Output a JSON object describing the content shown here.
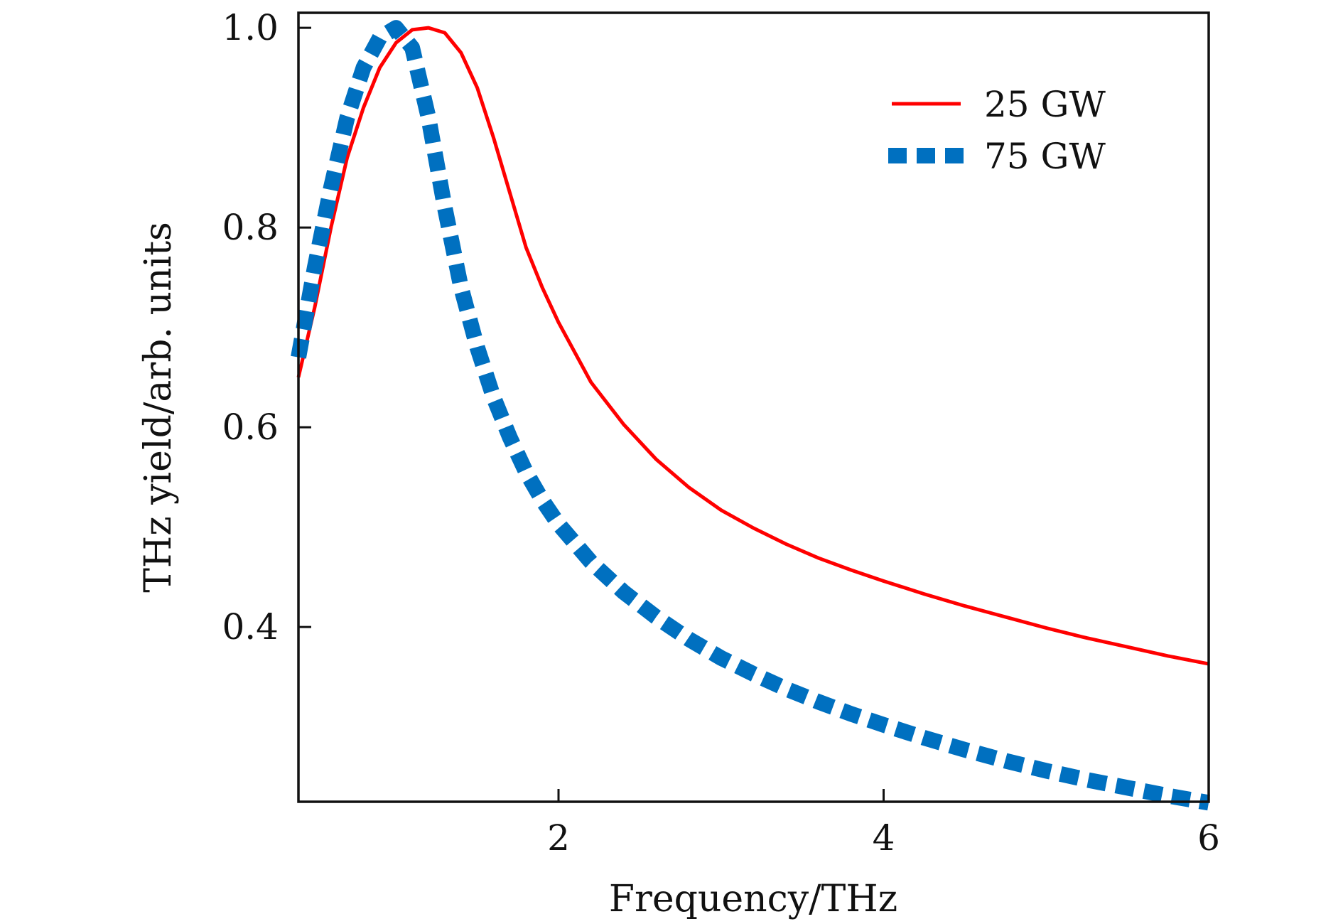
{
  "chart_data": {
    "type": "line",
    "title": "",
    "xlabel": "Frequency/THz",
    "ylabel": "THz yield/arb. units",
    "xlim": [
      0.4,
      6.0
    ],
    "ylim": [
      0.225,
      1.015
    ],
    "xticks": [
      2,
      4,
      6
    ],
    "yticks": [
      0.4,
      0.6,
      0.8,
      1.0
    ],
    "xtick_labels": [
      "2",
      "4",
      "6"
    ],
    "ytick_labels": [
      "0.4",
      "0.6",
      "0.8",
      "1.0"
    ],
    "grid": false,
    "legend_position": "top-right",
    "series": [
      {
        "name": "25 GW",
        "style": "solid",
        "color": "#ff0000",
        "x": [
          0.4,
          0.5,
          0.6,
          0.7,
          0.8,
          0.9,
          1.0,
          1.1,
          1.2,
          1.3,
          1.4,
          1.5,
          1.6,
          1.7,
          1.8,
          1.9,
          2.0,
          2.2,
          2.4,
          2.6,
          2.8,
          3.0,
          3.2,
          3.4,
          3.6,
          3.8,
          4.0,
          4.25,
          4.5,
          4.75,
          5.0,
          5.25,
          5.5,
          5.75,
          6.0
        ],
        "y": [
          0.65,
          0.72,
          0.8,
          0.87,
          0.92,
          0.96,
          0.985,
          0.998,
          1.0,
          0.995,
          0.975,
          0.94,
          0.89,
          0.835,
          0.78,
          0.74,
          0.705,
          0.645,
          0.603,
          0.568,
          0.54,
          0.517,
          0.499,
          0.483,
          0.469,
          0.457,
          0.446,
          0.433,
          0.421,
          0.41,
          0.399,
          0.389,
          0.38,
          0.371,
          0.363
        ]
      },
      {
        "name": "75 GW",
        "style": "dashed",
        "color": "#0070c0",
        "x": [
          0.4,
          0.5,
          0.6,
          0.7,
          0.8,
          0.9,
          1.0,
          1.1,
          1.2,
          1.3,
          1.4,
          1.5,
          1.6,
          1.7,
          1.8,
          1.9,
          2.0,
          2.2,
          2.4,
          2.6,
          2.8,
          3.0,
          3.2,
          3.4,
          3.6,
          3.8,
          4.0,
          4.25,
          4.5,
          4.75,
          5.0,
          5.25,
          5.5,
          5.75,
          6.0
        ],
        "y": [
          0.67,
          0.76,
          0.84,
          0.91,
          0.96,
          0.99,
          1.0,
          0.98,
          0.91,
          0.82,
          0.74,
          0.68,
          0.63,
          0.59,
          0.555,
          0.527,
          0.503,
          0.465,
          0.435,
          0.41,
          0.388,
          0.369,
          0.353,
          0.338,
          0.325,
          0.313,
          0.302,
          0.289,
          0.277,
          0.266,
          0.256,
          0.247,
          0.239,
          0.231,
          0.224
        ]
      }
    ]
  }
}
